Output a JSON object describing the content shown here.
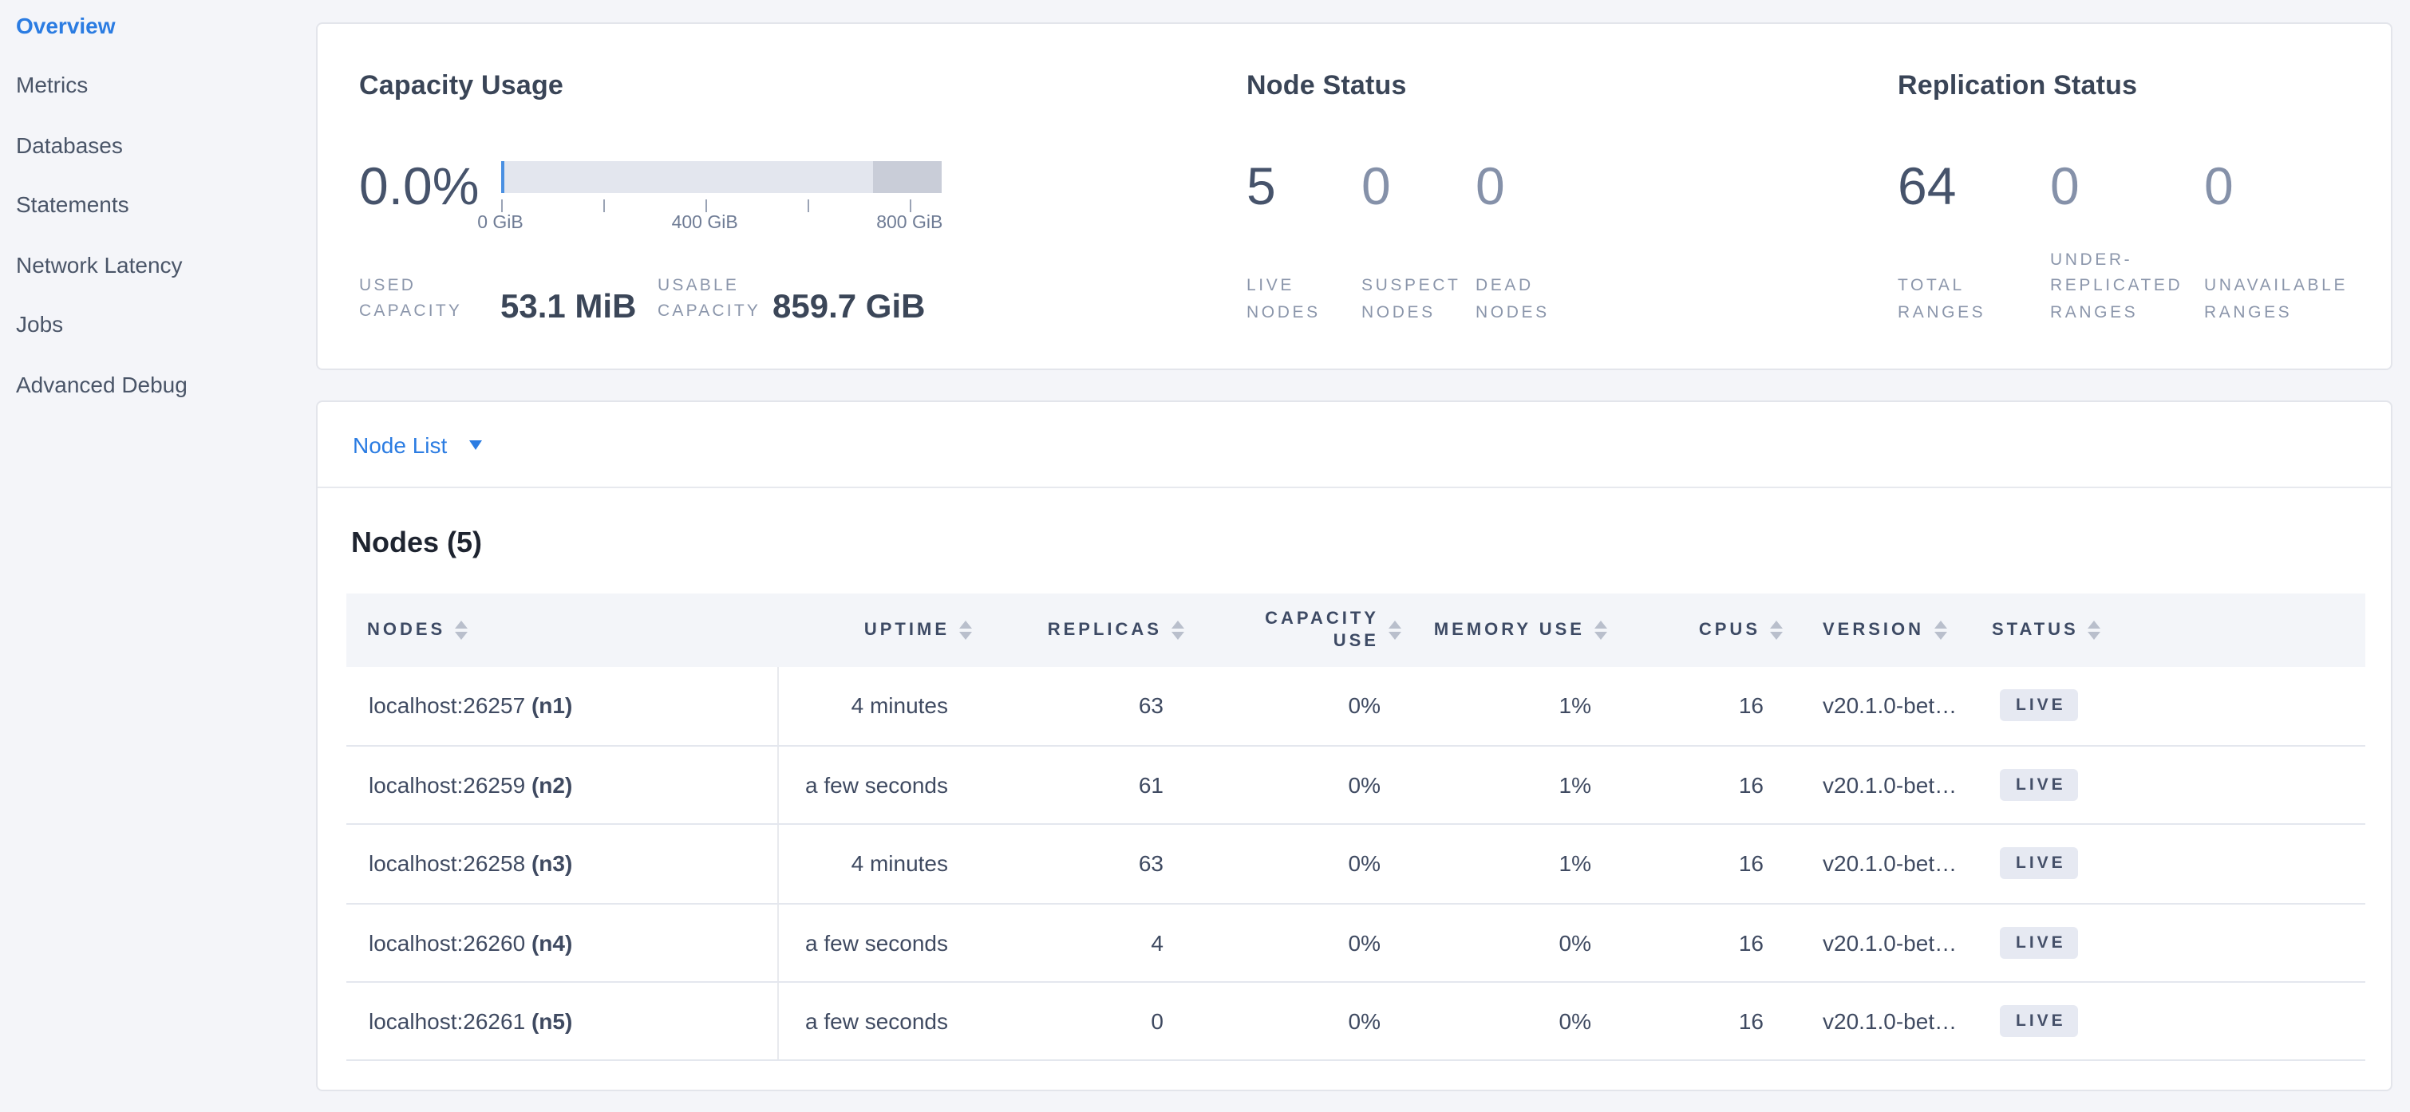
{
  "colors": {
    "accent_blue": "#2b7ce2",
    "page_background": "#f4f5f9",
    "bar_light": "#e3e6ee",
    "bar_reserved": "#c9cdd8",
    "bar_used": "#4a90e2",
    "badge_background": "#e6e9f2"
  },
  "sidebar": {
    "items": [
      {
        "label": "Overview",
        "active": true
      },
      {
        "label": "Metrics",
        "active": false
      },
      {
        "label": "Databases",
        "active": false
      },
      {
        "label": "Statements",
        "active": false
      },
      {
        "label": "Network Latency",
        "active": false
      },
      {
        "label": "Jobs",
        "active": false
      },
      {
        "label": "Advanced Debug",
        "active": false
      }
    ]
  },
  "capacity": {
    "title": "Capacity Usage",
    "percent": "0.0%",
    "bar": {
      "ticks": [
        {
          "pos": 0,
          "label": "0 GiB"
        },
        {
          "pos": 23.2,
          "label": ""
        },
        {
          "pos": 46.4,
          "label": "400 GiB"
        },
        {
          "pos": 69.6,
          "label": ""
        },
        {
          "pos": 92.9,
          "label": "800 GiB"
        }
      ]
    },
    "stats": [
      {
        "label": [
          "USED",
          "CAPACITY"
        ],
        "value": "53.1 MiB"
      },
      {
        "label": [
          "USABLE",
          "CAPACITY"
        ],
        "value": "859.7 GiB"
      }
    ]
  },
  "node_status": {
    "title": "Node Status",
    "stats": [
      {
        "value": "5",
        "label": [
          "LIVE",
          "NODES"
        ]
      },
      {
        "value": "0",
        "label": [
          "SUSPECT",
          "NODES"
        ]
      },
      {
        "value": "0",
        "label": [
          "DEAD",
          "NODES"
        ]
      }
    ]
  },
  "replication": {
    "title": "Replication Status",
    "stats": [
      {
        "value": "64",
        "label": [
          "TOTAL",
          "RANGES"
        ]
      },
      {
        "value": "0",
        "label": [
          "UNDER-",
          "REPLICATED",
          "RANGES"
        ]
      },
      {
        "value": "0",
        "label": [
          "UNAVAILABLE",
          "RANGES"
        ]
      }
    ]
  },
  "node_list": {
    "selector_label": "Node List",
    "heading": "Nodes (5)",
    "columns": [
      {
        "label": "NODES"
      },
      {
        "label": "UPTIME"
      },
      {
        "label": "REPLICAS"
      },
      {
        "label": [
          "CAPACITY",
          "USE"
        ]
      },
      {
        "label": "MEMORY USE"
      },
      {
        "label": "CPUS"
      },
      {
        "label": "VERSION"
      },
      {
        "label": "STATUS"
      }
    ],
    "rows": [
      {
        "address": "localhost:26257",
        "node_id": "(n1)",
        "uptime": "4 minutes",
        "replicas": "63",
        "capacity_use": "0%",
        "memory_use": "1%",
        "cpus": "16",
        "version": "v20.1.0-bet…",
        "status": "LIVE"
      },
      {
        "address": "localhost:26259",
        "node_id": "(n2)",
        "uptime": "a few seconds",
        "replicas": "61",
        "capacity_use": "0%",
        "memory_use": "1%",
        "cpus": "16",
        "version": "v20.1.0-bet…",
        "status": "LIVE"
      },
      {
        "address": "localhost:26258",
        "node_id": "(n3)",
        "uptime": "4 minutes",
        "replicas": "63",
        "capacity_use": "0%",
        "memory_use": "1%",
        "cpus": "16",
        "version": "v20.1.0-bet…",
        "status": "LIVE"
      },
      {
        "address": "localhost:26260",
        "node_id": "(n4)",
        "uptime": "a few seconds",
        "replicas": "4",
        "capacity_use": "0%",
        "memory_use": "0%",
        "cpus": "16",
        "version": "v20.1.0-bet…",
        "status": "LIVE"
      },
      {
        "address": "localhost:26261",
        "node_id": "(n5)",
        "uptime": "a few seconds",
        "replicas": "0",
        "capacity_use": "0%",
        "memory_use": "0%",
        "cpus": "16",
        "version": "v20.1.0-bet…",
        "status": "LIVE"
      }
    ]
  }
}
